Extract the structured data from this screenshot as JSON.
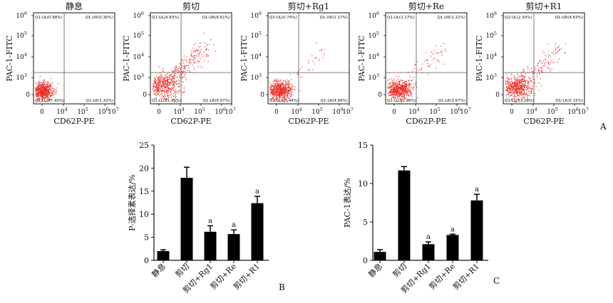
{
  "panel_labels": {
    "a": "A",
    "b": "B",
    "c": "C"
  },
  "colors": {
    "dots": "#e8302a",
    "bars": "#000000",
    "axis": "#111111",
    "gate": "#555555"
  },
  "flow_axes": {
    "x_label": "CD62P-PE",
    "y_label": "PAC-1-FITC",
    "x_ticks": [
      {
        "base": "0",
        "exp": ""
      },
      {
        "base": "10",
        "exp": "4"
      },
      {
        "base": "10",
        "exp": "5"
      },
      {
        "base": "10",
        "exp": "6"
      },
      {
        "base": "10",
        "exp": "7"
      }
    ],
    "y_ticks": [
      {
        "base": "0",
        "exp": ""
      },
      {
        "base": "10",
        "exp": "3"
      },
      {
        "base": "10",
        "exp": "4"
      },
      {
        "base": "10",
        "exp": "5"
      },
      {
        "base": "10",
        "exp": "6"
      }
    ]
  },
  "chart_data": [
    {
      "type": "scatter",
      "title": "静息",
      "xlabel": "CD62P-PE",
      "ylabel": "PAC-1-FITC",
      "quadrants": {
        "UL": "Q1-UL(0.98%)",
        "UR": "Q1-UR(0.30%)",
        "LL": "Q1-LL(97.40%)",
        "LR": "Q1-LR(1.32%)"
      }
    },
    {
      "type": "scatter",
      "title": "剪切",
      "xlabel": "CD62P-PE",
      "ylabel": "PAC-1-FITC",
      "quadrants": {
        "UL": "Q1-UL(4.83%)",
        "UR": "Q1-UR(8.61%)",
        "LL": "Q1-LL(81.49%)",
        "LR": "Q1-LR(5.07%)"
      }
    },
    {
      "type": "scatter",
      "title": "剪切+Rg1",
      "xlabel": "CD62P-PE",
      "ylabel": "PAC-1-FITC",
      "quadrants": {
        "UL": "Q1-UL(0.74%)",
        "UR": "Q1-UR(1.17%)",
        "LL": "Q1-LL(93.44%)",
        "LR": "Q1-LR(4.66%)"
      }
    },
    {
      "type": "scatter",
      "title": "剪切+Re",
      "xlabel": "CD62P-PE",
      "ylabel": "PAC-1-FITC",
      "quadrants": {
        "UL": "Q1-UL(2.17%)",
        "UR": "Q1-UR(1.21%)",
        "LL": "Q1-LL(92.96%)",
        "LR": "Q1-LR(3.67%)"
      }
    },
    {
      "type": "scatter",
      "title": "剪切+R1",
      "xlabel": "CD62P-PE",
      "ylabel": "PAC-1-FITC",
      "quadrants": {
        "UL": "Q1-UL(2.93%)",
        "UR": "Q1-UR(4.63%)",
        "LL": "Q1-LL(87.29%)",
        "LR": "Q1-LR(5.15%)"
      }
    },
    {
      "type": "bar",
      "title": "",
      "xlabel": "",
      "ylabel": "P-选择素表达/%",
      "categories": [
        "静息",
        "剪切",
        "剪切+Rg1",
        "剪切+Re",
        "剪切+R1"
      ],
      "values": [
        2.0,
        17.9,
        6.2,
        5.7,
        12.4
      ],
      "errors": [
        0.3,
        2.3,
        1.3,
        0.9,
        1.5
      ],
      "annotations": [
        "",
        "",
        "a",
        "a",
        "a"
      ],
      "ylim": [
        0,
        25
      ],
      "yticks": [
        0,
        5,
        10,
        15,
        20,
        25
      ]
    },
    {
      "type": "bar",
      "title": "",
      "xlabel": "",
      "ylabel": "PAC-1表达/%",
      "categories": [
        "静息",
        "剪切",
        "剪切+Rg1",
        "剪切+Re",
        "剪切+R1"
      ],
      "values": [
        1.1,
        11.7,
        2.1,
        3.3,
        7.8
      ],
      "errors": [
        0.3,
        0.5,
        0.3,
        0.1,
        0.8
      ],
      "annotations": [
        "",
        "",
        "a",
        "a",
        "a"
      ],
      "ylim": [
        0,
        15
      ],
      "yticks": [
        0,
        5,
        10,
        15
      ]
    }
  ]
}
